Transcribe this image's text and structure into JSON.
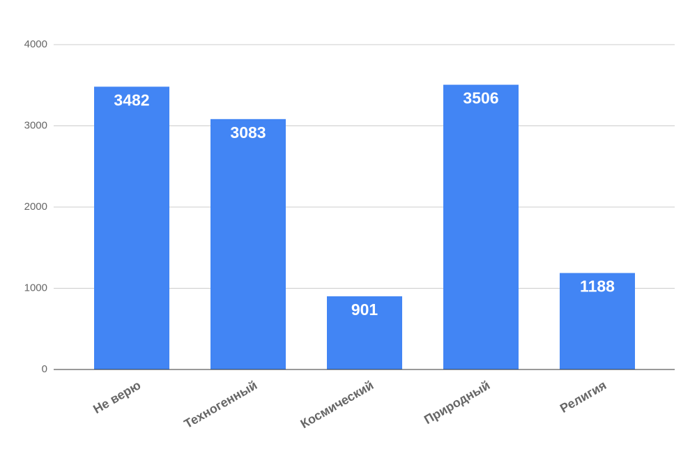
{
  "chart_data": {
    "type": "bar",
    "categories": [
      "Не верю",
      "Техногенный",
      "Космический",
      "Природный",
      "Религия"
    ],
    "values": [
      3482,
      3083,
      901,
      3506,
      1188
    ],
    "color": "#4285f4",
    "ylim": [
      0,
      4000
    ],
    "yticks": [
      0,
      1000,
      2000,
      3000,
      4000
    ],
    "grid": true
  }
}
